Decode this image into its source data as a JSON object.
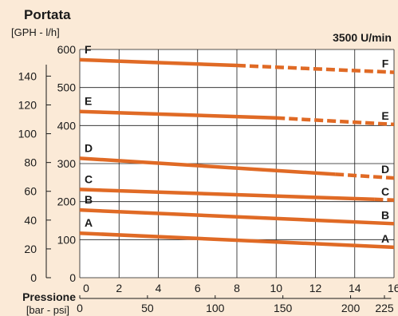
{
  "chart_data": {
    "type": "line",
    "title": "Portata",
    "subtitle": "[GPH - l/h]",
    "speed_label": "3500 U/min",
    "xlabel": "Pressione",
    "xlabel_units": "[bar - psi]",
    "bar_ticks": [
      "0",
      "2",
      "4",
      "6",
      "8",
      "10",
      "12",
      "14",
      "16"
    ],
    "psi_ticks": [
      "0",
      "50",
      "100",
      "150",
      "200",
      "225"
    ],
    "psi_values": [
      0,
      50,
      100,
      150,
      200,
      225
    ],
    "lh_ticks": [
      "0",
      "100",
      "200",
      "300",
      "400",
      "500",
      "600"
    ],
    "gph_ticks": [
      "0",
      "20",
      "40",
      "60",
      "80",
      "100",
      "120",
      "140"
    ],
    "gph_values": [
      0,
      20,
      40,
      60,
      80,
      100,
      120,
      140
    ],
    "xlim": [
      0,
      16
    ],
    "ylim": [
      0,
      600
    ],
    "series": [
      {
        "name": "A",
        "solid": [
          [
            0,
            117
          ],
          [
            16,
            80
          ]
        ],
        "dashed": null
      },
      {
        "name": "B",
        "solid": [
          [
            0,
            178
          ],
          [
            16,
            142
          ]
        ],
        "dashed": null
      },
      {
        "name": "C",
        "solid": [
          [
            0,
            232
          ],
          [
            15,
            206
          ]
        ],
        "dashed": [
          [
            15,
            206
          ],
          [
            16,
            204
          ]
        ]
      },
      {
        "name": "D",
        "solid": [
          [
            0,
            314
          ],
          [
            13,
            272
          ]
        ],
        "dashed": [
          [
            13,
            272
          ],
          [
            16,
            262
          ]
        ]
      },
      {
        "name": "E",
        "solid": [
          [
            0,
            437
          ],
          [
            10,
            420
          ]
        ],
        "dashed": [
          [
            10,
            420
          ],
          [
            16,
            403
          ]
        ]
      },
      {
        "name": "F",
        "solid": [
          [
            0,
            573
          ],
          [
            8,
            558
          ]
        ],
        "dashed": [
          [
            8,
            558
          ],
          [
            16,
            540
          ]
        ]
      }
    ],
    "line_color": "#e06a25",
    "grid": true
  }
}
